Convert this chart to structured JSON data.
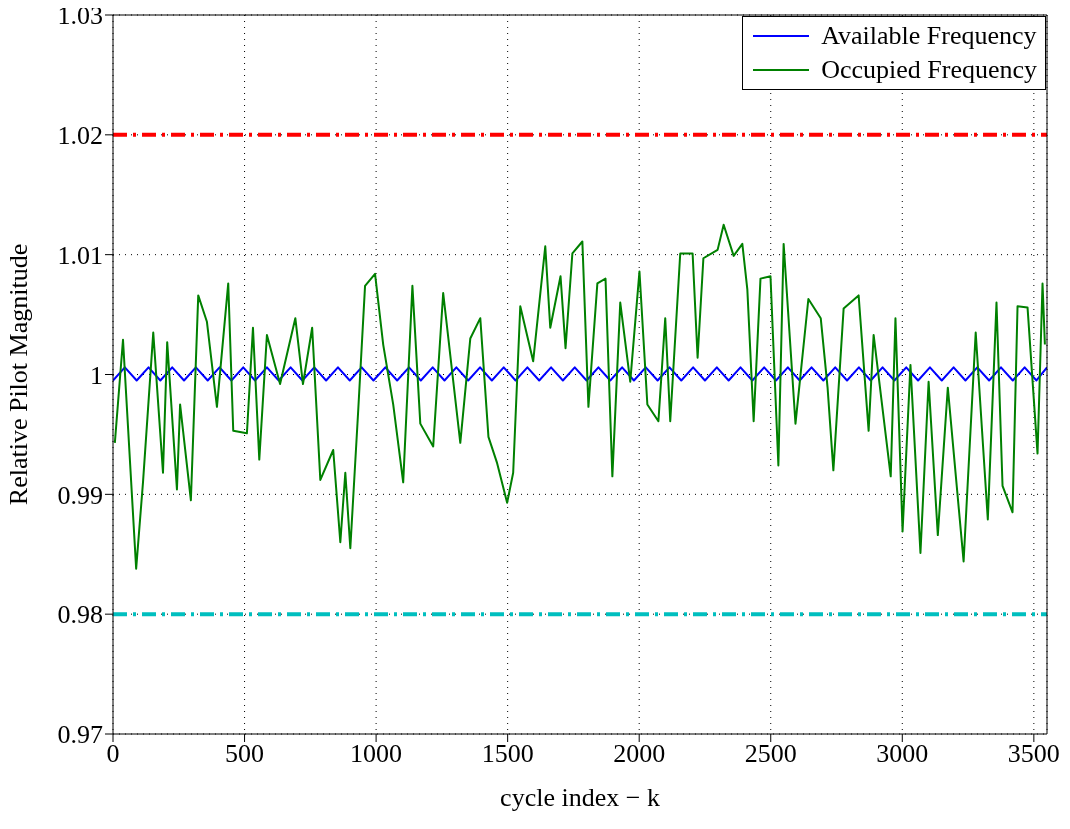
{
  "chart_data": {
    "type": "line",
    "xlabel": "cycle index − k",
    "ylabel": "Relative Pilot Magnitude",
    "xlim": [
      0,
      3550
    ],
    "ylim": [
      0.97,
      1.03
    ],
    "xticks": [
      0,
      500,
      1000,
      1500,
      2000,
      2500,
      3000,
      3500
    ],
    "yticks": [
      0.97,
      0.98,
      0.99,
      1,
      1.01,
      1.02,
      1.03
    ],
    "grid": true,
    "legend": "top right",
    "marker": "none",
    "line_style": "solid",
    "ref_lines": [
      {
        "axis": "y",
        "value": 1.02,
        "color": "#ff0000",
        "line_style": "dashed"
      },
      {
        "axis": "y",
        "value": 0.98,
        "color": "#00bfbf",
        "line_style": "dashed"
      }
    ],
    "series": [
      {
        "name": "Available Frequency",
        "color": "#0000ff",
        "x": [
          0,
          45,
          90,
          135,
          180,
          225,
          270,
          315,
          360,
          405,
          450,
          495,
          540,
          585,
          630,
          675,
          720,
          765,
          810,
          855,
          900,
          945,
          990,
          1035,
          1080,
          1125,
          1170,
          1215,
          1260,
          1305,
          1350,
          1395,
          1440,
          1485,
          1530,
          1575,
          1620,
          1665,
          1710,
          1755,
          1800,
          1845,
          1890,
          1935,
          1980,
          2025,
          2070,
          2115,
          2160,
          2205,
          2250,
          2295,
          2340,
          2385,
          2430,
          2475,
          2520,
          2565,
          2610,
          2655,
          2700,
          2745,
          2790,
          2835,
          2880,
          2925,
          2970,
          3015,
          3060,
          3105,
          3150,
          3195,
          3240,
          3285,
          3330,
          3375,
          3420,
          3465,
          3510,
          3550
        ],
        "values": [
          0.9995,
          1.0006,
          0.9995,
          1.0006,
          0.9995,
          1.0006,
          0.9995,
          1.0006,
          0.9995,
          1.0006,
          0.9995,
          1.0006,
          0.9995,
          1.0006,
          0.9995,
          1.0006,
          0.9995,
          1.0006,
          0.9995,
          1.0006,
          0.9995,
          1.0006,
          0.9995,
          1.0006,
          0.9995,
          1.0006,
          0.9995,
          1.0006,
          0.9995,
          1.0006,
          0.9995,
          1.0006,
          0.9995,
          1.0006,
          0.9995,
          1.0006,
          0.9995,
          1.0006,
          0.9995,
          1.0006,
          0.9995,
          1.0006,
          0.9995,
          1.0006,
          0.9995,
          1.0006,
          0.9995,
          1.0006,
          0.9995,
          1.0006,
          0.9995,
          1.0006,
          0.9995,
          1.0006,
          0.9995,
          1.0006,
          0.9995,
          1.0006,
          0.9995,
          1.0006,
          0.9995,
          1.0006,
          0.9995,
          1.0006,
          0.9995,
          1.0006,
          0.9995,
          1.0006,
          0.9995,
          1.0006,
          0.9995,
          1.0006,
          0.9995,
          1.0006,
          0.9995,
          1.0006,
          0.9995,
          1.0006,
          0.9995,
          1.0006
        ]
      },
      {
        "name": "Occupied Frequency",
        "color": "#008000",
        "x": [
          7,
          38,
          88,
          114,
          153,
          190,
          206,
          243,
          255,
          296,
          324,
          357,
          395,
          438,
          457,
          509,
          532,
          556,
          585,
          635,
          693,
          722,
          757,
          788,
          837,
          864,
          883,
          902,
          932,
          958,
          996,
          1027,
          1065,
          1103,
          1138,
          1168,
          1217,
          1255,
          1320,
          1358,
          1396,
          1427,
          1460,
          1498,
          1521,
          1548,
          1597,
          1643,
          1662,
          1701,
          1720,
          1746,
          1784,
          1807,
          1841,
          1872,
          1898,
          1928,
          1966,
          2001,
          2031,
          2073,
          2099,
          2118,
          2156,
          2203,
          2222,
          2244,
          2298,
          2321,
          2359,
          2392,
          2411,
          2435,
          2461,
          2499,
          2529,
          2549,
          2594,
          2643,
          2690,
          2716,
          2738,
          2777,
          2834,
          2872,
          2891,
          2956,
          2974,
          3001,
          3031,
          3069,
          3100,
          3135,
          3173,
          3233,
          3279,
          3325,
          3358,
          3381,
          3419,
          3438,
          3476,
          3514,
          3533,
          3542
        ],
        "values": [
          0.9943,
          1.0029,
          0.9838,
          0.991,
          1.0035,
          0.9918,
          1.0027,
          0.9904,
          0.9975,
          0.9895,
          1.0066,
          1.0044,
          0.9973,
          1.0076,
          0.9953,
          0.9951,
          1.0039,
          0.9929,
          1.0033,
          0.9992,
          1.0047,
          0.9992,
          1.0039,
          0.9912,
          0.9937,
          0.986,
          0.9918,
          0.9855,
          0.997,
          1.0074,
          1.0084,
          1.0025,
          0.9975,
          0.991,
          1.0074,
          0.9959,
          0.994,
          1.0068,
          0.9943,
          1.003,
          1.0047,
          0.9948,
          0.9926,
          0.9893,
          0.9918,
          1.0057,
          1.0011,
          1.0107,
          1.0039,
          1.0082,
          1.0022,
          1.0101,
          1.0111,
          0.9973,
          1.0076,
          1.008,
          0.9915,
          1.006,
          0.9994,
          1.0086,
          0.9975,
          0.9961,
          1.0047,
          0.9961,
          1.0101,
          1.0101,
          1.0014,
          1.0097,
          1.0104,
          1.0125,
          1.0099,
          1.0109,
          1.0071,
          0.9961,
          1.008,
          1.0082,
          0.9924,
          1.0109,
          0.9959,
          1.0063,
          1.0047,
          0.9989,
          0.992,
          1.0055,
          1.0066,
          0.9953,
          1.0033,
          0.9915,
          1.0047,
          0.9869,
          1.0008,
          0.9851,
          0.9994,
          0.9866,
          0.9989,
          0.9844,
          1.0035,
          0.9879,
          1.006,
          0.9907,
          0.9885,
          1.0057,
          1.0056,
          0.9934,
          1.0076,
          1.0025
        ]
      }
    ]
  }
}
